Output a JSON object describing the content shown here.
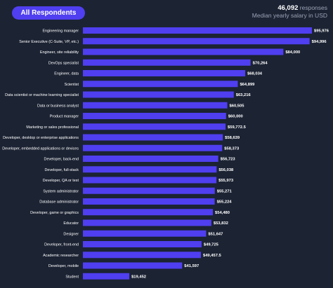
{
  "header": {
    "filter_label": "All Respondents",
    "response_count": "46,092",
    "responses_label": "responses",
    "subtitle": "Median yearly salary in USD"
  },
  "colors": {
    "background": "#1c2333",
    "bar": "#4f3ff0",
    "text": "#ffffff"
  },
  "chart_data": {
    "type": "bar",
    "orientation": "horizontal",
    "title": "",
    "subtitle": "Median yearly salary in USD",
    "xlabel": "",
    "ylabel": "",
    "grid": false,
    "legend": "none",
    "xlim": [
      0,
      95976
    ],
    "categories": [
      "Engineering manager",
      "Senior Executive (C-Suite, VP, etc.)",
      "Engineer, site reliability",
      "DevOps specialist",
      "Engineer, data",
      "Scientist",
      "Data scientist or machine learning specialist",
      "Data or business analyst",
      "Product manager",
      "Marketing or sales professional",
      "Developer, desktop or enterprise applications",
      "Developer, embedded applications or devices",
      "Developer, back-end",
      "Developer, full-stack",
      "Developer, QA or test",
      "System administrator",
      "Database administrator",
      "Developer, game or graphics",
      "Educator",
      "Designer",
      "Developer, front-end",
      "Academic researcher",
      "Developer, mobile",
      "Student"
    ],
    "values": [
      95976,
      94996,
      84000,
      70264,
      68034,
      64899,
      63216,
      60505,
      60000,
      59772.5,
      58639,
      58373,
      56723,
      56038,
      55973,
      55271,
      55224,
      54480,
      53832,
      51647,
      49725,
      49457.5,
      41597,
      19452
    ],
    "value_labels": [
      "$95,976",
      "$94,996",
      "$84,000",
      "$70,264",
      "$68,034",
      "$64,899",
      "$63,216",
      "$60,505",
      "$60,000",
      "$59,772.5",
      "$58,639",
      "$58,373",
      "$56,723",
      "$56,038",
      "$55,973",
      "$55,271",
      "$55,224",
      "$54,480",
      "$53,832",
      "$51,647",
      "$49,725",
      "$49,457.5",
      "$41,597",
      "$19,452"
    ]
  }
}
